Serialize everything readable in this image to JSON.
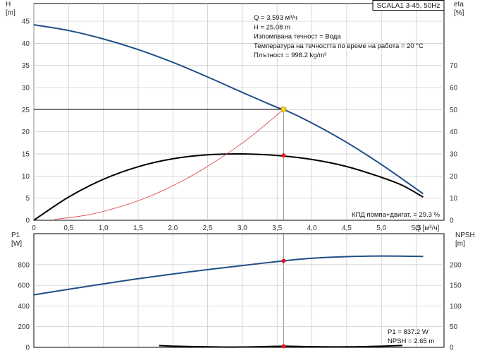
{
  "chart_data": [
    {
      "type": "line",
      "title": "SCALA1 3-45, 50Hz",
      "xlabel": "Q [м³/ч]",
      "ylabel_left": "H\n[m]",
      "ylabel_right": "eta\n[%]",
      "xlim": [
        0,
        5.9
      ],
      "ylim_left": [
        0,
        49
      ],
      "ylim_right": [
        0,
        98
      ],
      "x_ticks": [
        0,
        0.5,
        1.0,
        1.5,
        2.0,
        2.5,
        3.0,
        3.5,
        4.0,
        4.5,
        5.0,
        5.5
      ],
      "x_tick_labels": [
        "0",
        "0,5",
        "1,0",
        "1,5",
        "2,0",
        "2,5",
        "3,0",
        "3,5",
        "4,0",
        "4,5",
        "5,0",
        "5,5"
      ],
      "y_ticks_left": [
        0,
        5,
        10,
        15,
        20,
        25,
        30,
        35,
        40,
        45
      ],
      "y_ticks_right": [
        0,
        10,
        20,
        30,
        40,
        50,
        60,
        70
      ],
      "grid": true,
      "series": [
        {
          "id": "h",
          "color": "#1f4e89",
          "axis": "left",
          "x": [
            0,
            0.5,
            1.0,
            1.5,
            2.0,
            2.5,
            3.0,
            3.5,
            3.593,
            4.0,
            4.5,
            5.0,
            5.6
          ],
          "y": [
            44.2,
            42.9,
            41.0,
            38.6,
            35.7,
            32.4,
            28.9,
            25.5,
            25.08,
            22.0,
            17.6,
            12.6,
            6.0
          ]
        },
        {
          "id": "eta",
          "color": "#000000",
          "axis": "right",
          "x": [
            0,
            0.5,
            1.0,
            1.5,
            2.0,
            2.5,
            3.0,
            3.5,
            4.0,
            4.5,
            5.0,
            5.3,
            5.6
          ],
          "y": [
            0,
            10.5,
            18.5,
            24.2,
            27.8,
            29.6,
            30.0,
            29.3,
            27.5,
            24.3,
            19.4,
            15.8,
            10.5
          ]
        },
        {
          "id": "system",
          "color": "#e03b3b",
          "axis": "left",
          "x": [
            0.3,
            0.7,
            1.0,
            1.5,
            2.0,
            2.5,
            3.0,
            3.3,
            3.593
          ],
          "y": [
            0.2,
            1.0,
            2.0,
            4.4,
            7.8,
            12.2,
            17.5,
            21.2,
            25.08
          ]
        }
      ],
      "duty_point": {
        "x": 3.593,
        "h": 25.08,
        "eta": 29.3
      },
      "info_lines": [
        "Q = 3.593 м³/ч",
        "H = 25.08 m",
        "Изпомпвана течност = Вода",
        "Температура на течността по време на работа = 20 °C",
        "Плътност = 998.2 kg/m³"
      ],
      "efficiency_text": "КПД помпа+двигат. = 29.3 %"
    },
    {
      "type": "line",
      "xlabel": "",
      "ylabel_left": "P1\n[W]",
      "ylabel_right": "NPSH\n[m]",
      "xlim": [
        0,
        5.9
      ],
      "ylim_left": [
        0,
        1100
      ],
      "ylim_right": [
        0,
        275
      ],
      "y_ticks_left": [
        0,
        200,
        400,
        600,
        800
      ],
      "y_ticks_right": [
        0,
        50,
        100,
        150,
        200
      ],
      "grid": true,
      "series": [
        {
          "id": "p1",
          "color": "#1f4e89",
          "axis": "left",
          "x": [
            0,
            0.5,
            1.0,
            1.5,
            2.0,
            2.5,
            3.0,
            3.593,
            4.0,
            4.5,
            5.0,
            5.6
          ],
          "y": [
            508,
            562,
            614,
            664,
            710,
            752,
            792,
            837.2,
            862,
            878,
            884,
            880
          ]
        },
        {
          "id": "npsh",
          "color": "#000000",
          "axis": "right",
          "x": [
            1.8,
            2.2,
            2.6,
            3.0,
            3.593,
            4.0,
            4.5,
            5.0,
            5.3
          ],
          "y": [
            4.2,
            2.0,
            1.0,
            0.8,
            2.65,
            1.5,
            1.2,
            2.8,
            4.5
          ]
        }
      ],
      "duty_point": {
        "x": 3.593,
        "p1": 837.2,
        "npsh": 2.65
      },
      "info_lines": [
        "P1 = 837.2 W",
        "NPSH = 2.65 m"
      ]
    }
  ]
}
